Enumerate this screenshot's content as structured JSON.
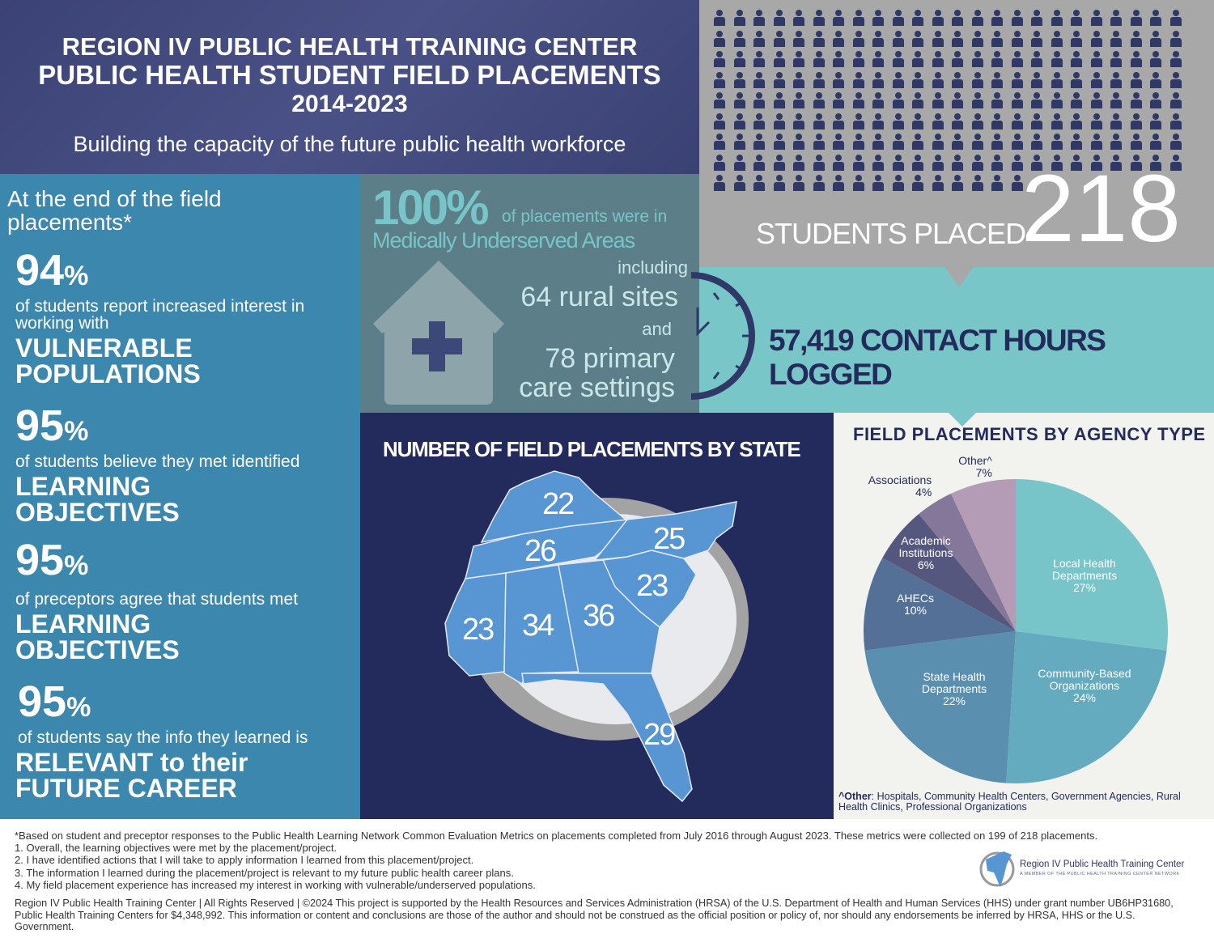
{
  "header": {
    "line1": "REGION IV PUBLIC HEALTH TRAINING CENTER",
    "line2": "PUBLIC HEALTH STUDENT FIELD PLACEMENTS",
    "years": "2014-2023",
    "tagline": "Building the capacity of the future public health workforce"
  },
  "students": {
    "label": "STUDENTS PLACED",
    "count": "218"
  },
  "contact_hours": "57,419 CONTACT HOURS LOGGED",
  "outcomes": {
    "intro": "At the end of the field placements*",
    "items": [
      {
        "pct": "94",
        "unit": "%",
        "desc": "of students report increased interest in working with",
        "emph": "VULNERABLE POPULATIONS"
      },
      {
        "pct": "95",
        "unit": "%",
        "desc": "of students believe they met identified",
        "emph": "LEARNING OBJECTIVES"
      },
      {
        "pct": "95",
        "unit": "%",
        "desc": "of preceptors agree that students met",
        "emph": "LEARNING OBJECTIVES"
      },
      {
        "pct": "95",
        "unit": "%",
        "desc": "of students say the info they learned is",
        "emph": "RELEVANT to their FUTURE CAREER"
      }
    ]
  },
  "underserved": {
    "pct": "100%",
    "tail": "of placements were in",
    "area": "Medically Underserved Areas",
    "including": "including",
    "rural": "64 rural sites",
    "and": "and",
    "primary1": "78 primary",
    "primary2": "care settings"
  },
  "map": {
    "title": "NUMBER OF FIELD PLACEMENTS BY STATE",
    "states": [
      {
        "state": "KY",
        "value": "22"
      },
      {
        "state": "TN",
        "value": "26"
      },
      {
        "state": "NC",
        "value": "25"
      },
      {
        "state": "SC",
        "value": "23"
      },
      {
        "state": "MS",
        "value": "23"
      },
      {
        "state": "AL",
        "value": "34"
      },
      {
        "state": "GA",
        "value": "36"
      },
      {
        "state": "FL",
        "value": "29"
      }
    ]
  },
  "chart_data": {
    "type": "pie",
    "title": "FIELD PLACEMENTS BY AGENCY TYPE",
    "slices": [
      {
        "label": "Local Health Departments",
        "value": 27,
        "text": "27%",
        "color": "#78c5c9"
      },
      {
        "label": "Community-Based Organizations",
        "value": 24,
        "text": "24%",
        "color": "#64abc0"
      },
      {
        "label": "State Health Departments",
        "value": 22,
        "text": "22%",
        "color": "#5a8fb0"
      },
      {
        "label": "AHECs",
        "value": 10,
        "text": "10%",
        "color": "#557096"
      },
      {
        "label": "Academic Institutions",
        "value": 6,
        "text": "6%",
        "color": "#56577f"
      },
      {
        "label": "Associations",
        "value": 4,
        "text": "4%",
        "color": "#857799"
      },
      {
        "label": "Other^",
        "value": 7,
        "text": "7%",
        "color": "#b49cb6"
      }
    ],
    "note_bold": "^Other",
    "note": ": Hospitals, Community Health Centers, Government Agencies, Rural Health Clinics, Professional Organizations"
  },
  "footer": {
    "lines": [
      "*Based on student and preceptor responses to the Public Health Learning Network Common Evaluation Metrics on placements completed from July 2016 through August 2023. These metrics were collected on 199 of 218 placements.",
      "1. Overall, the learning objectives were met by the placement/project.",
      "2. I have identified actions that I will take to apply information I learned from this placement/project.",
      "3. The information I learned during the placement/project is relevant to my future public health career plans.",
      "4. My field placement experience has increased my interest in working with vulnerable/underserved populations."
    ],
    "legal": "Region IV Public Health Training Center | All Rights Reserved | ©2024 This project is supported by the Health Resources and Services Administration (HRSA) of the U.S. Department of Health and Human Services (HHS) under grant number UB6HP31680, Public Health Training Centers for $4,348,992. This information or content and conclusions are those of the author and should not be construed as the official position or policy of, nor should any endorsements be inferred by HRSA, HHS or the U.S. Government.",
    "logo_name": "Region IV Public Health Training Center",
    "logo_sub": "A MEMBER OF THE PUBLIC HEALTH TRAINING CENTER NETWORK"
  }
}
